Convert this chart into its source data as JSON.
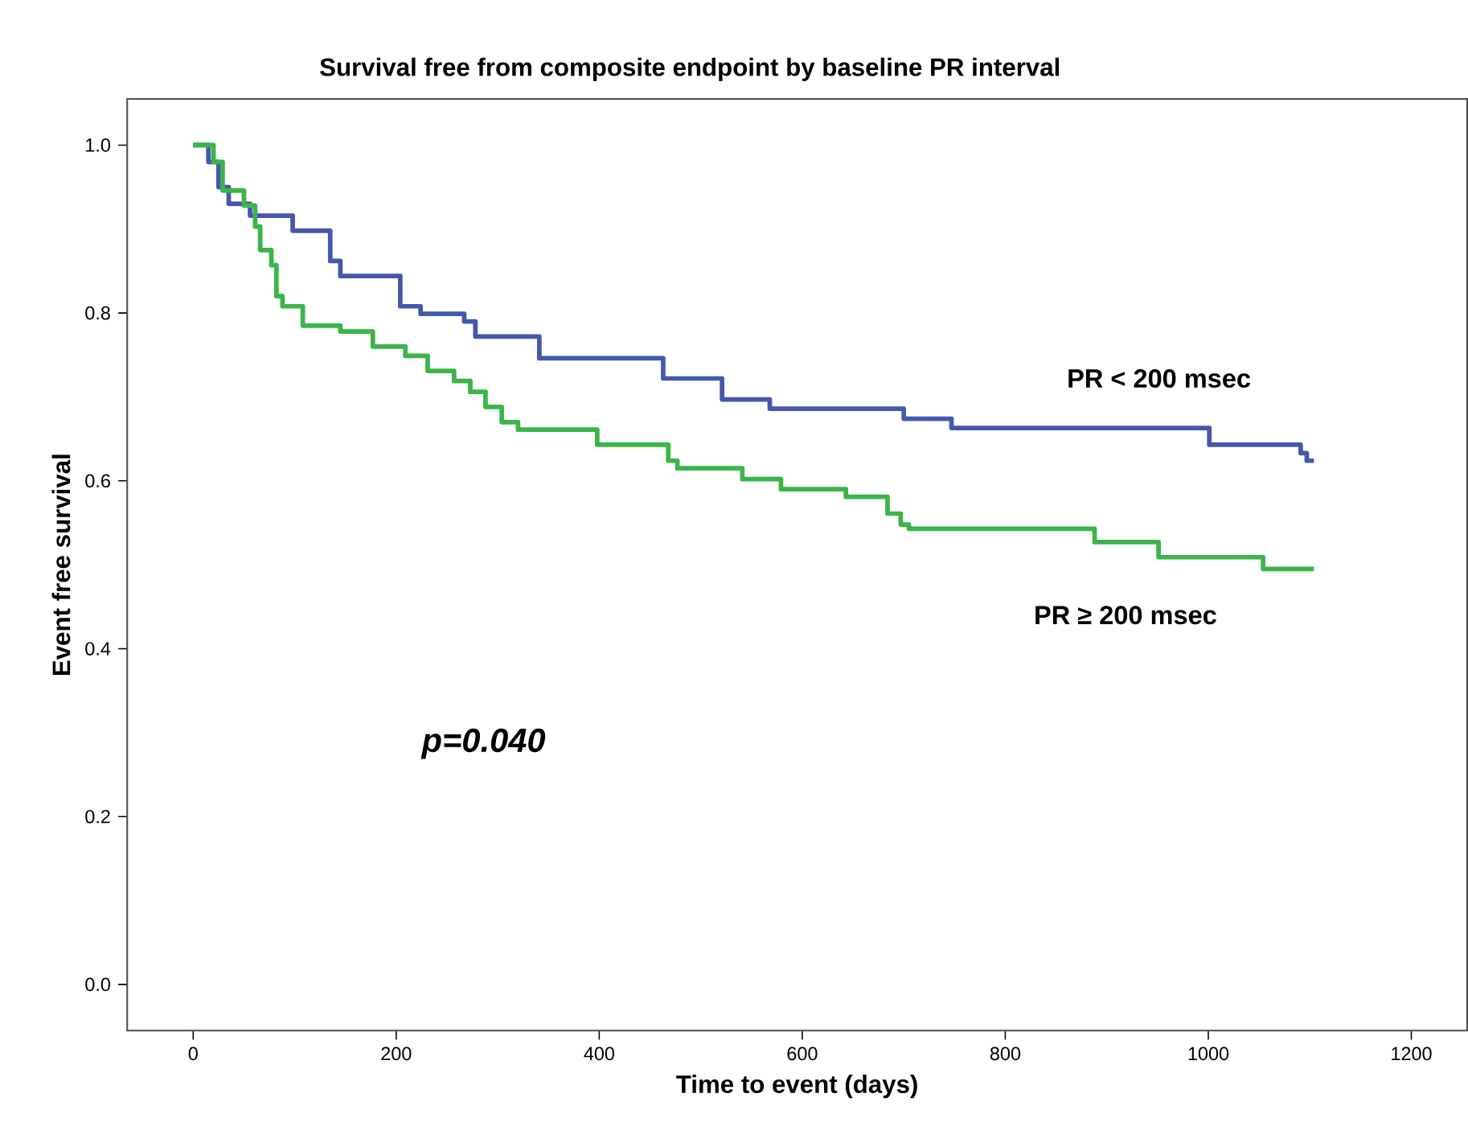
{
  "chart_data": {
    "type": "step",
    "title": "Survival free from composite endpoint by baseline PR interval",
    "xlabel": "Time to event (days)",
    "ylabel": "Event free survival",
    "xlim": [
      -65,
      1255
    ],
    "ylim": [
      -0.055,
      1.055
    ],
    "xticks": [
      0,
      200,
      400,
      600,
      800,
      1000,
      1200
    ],
    "yticks": [
      {
        "value": 0,
        "label": "0.0"
      },
      {
        "value": 0.2,
        "label": "0.2"
      },
      {
        "value": 0.4,
        "label": "0.4"
      },
      {
        "value": 0.6,
        "label": "0.6"
      },
      {
        "value": 0.8,
        "label": "0.8"
      },
      {
        "value": 1.0,
        "label": "1.0"
      }
    ],
    "grid": false,
    "legend": false,
    "annotations": [
      "p=0.040"
    ],
    "series": [
      {
        "name": "PR < 200 msec",
        "color": "#4558ad",
        "x": [
          0,
          15,
          25,
          35,
          56,
          98,
          135,
          145,
          204,
          224,
          267,
          278,
          341,
          463,
          521,
          568,
          700,
          747,
          1001,
          1091,
          1097,
          1104
        ],
        "values": [
          1.0,
          0.98,
          0.95,
          0.93,
          0.916,
          0.898,
          0.862,
          0.844,
          0.808,
          0.799,
          0.79,
          0.772,
          0.746,
          0.722,
          0.697,
          0.686,
          0.674,
          0.663,
          0.643,
          0.633,
          0.624,
          0.624
        ]
      },
      {
        "name": "PR ≥ 200 msec",
        "color": "#3cb44a",
        "x": [
          0,
          20,
          29,
          50,
          61,
          66,
          77,
          82,
          88,
          108,
          145,
          177,
          209,
          231,
          257,
          273,
          288,
          304,
          320,
          398,
          468,
          477,
          541,
          579,
          643,
          684,
          697,
          705,
          888,
          951,
          1054,
          1104
        ],
        "values": [
          1.0,
          0.98,
          0.946,
          0.928,
          0.903,
          0.875,
          0.857,
          0.82,
          0.808,
          0.785,
          0.778,
          0.76,
          0.749,
          0.731,
          0.719,
          0.706,
          0.688,
          0.67,
          0.661,
          0.643,
          0.624,
          0.615,
          0.602,
          0.59,
          0.581,
          0.561,
          0.548,
          0.543,
          0.527,
          0.509,
          0.495,
          0.495
        ]
      }
    ]
  }
}
